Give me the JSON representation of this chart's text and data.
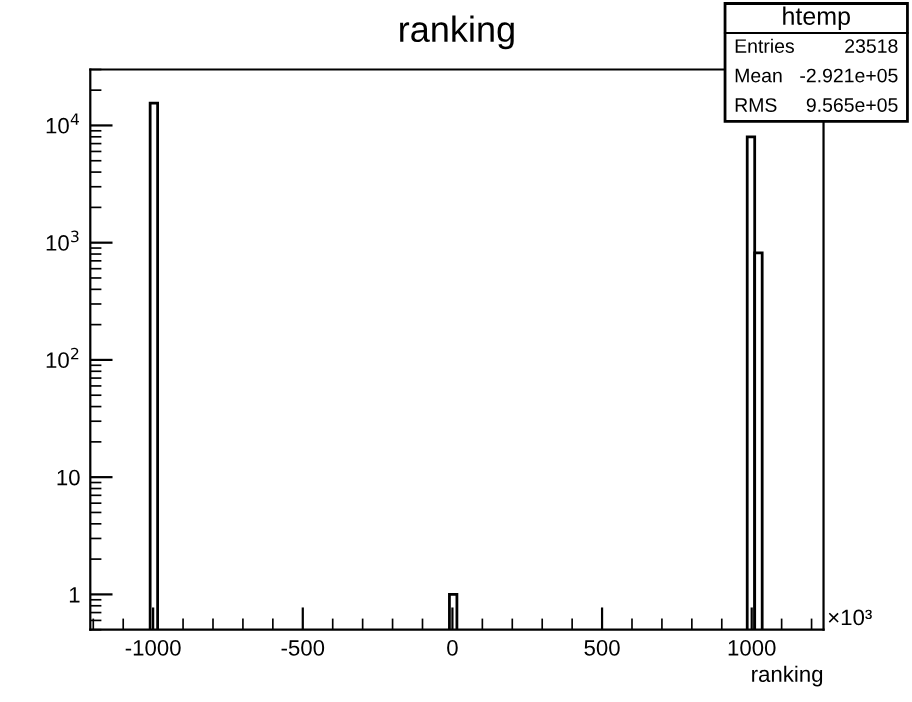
{
  "chart_data": {
    "type": "bar",
    "title": "ranking",
    "xlabel": "ranking",
    "x": [
      -997.5,
      2.5,
      997.5,
      1022.5
    ],
    "values": [
      15500,
      1,
      8000,
      820
    ],
    "color": "#000000",
    "log": "y",
    "xlim": [
      -1210,
      1240
    ],
    "xticks": [
      -1000,
      -500,
      0,
      500,
      1000
    ],
    "ylim": [
      0.5,
      30000
    ],
    "yticks": [
      1,
      10,
      {
        "value": 100,
        "label": "10$^{2}$"
      },
      {
        "value": 1000,
        "label": "10$^{3}$"
      },
      {
        "value": 10000,
        "label": "10$^{4}$"
      }
    ],
    "grid": false,
    "annotations": [
      "×10³",
      "htemp",
      "Entries",
      "23518",
      "Mean",
      "-2.921e+05",
      "RMS",
      "9.565e+05"
    ]
  }
}
